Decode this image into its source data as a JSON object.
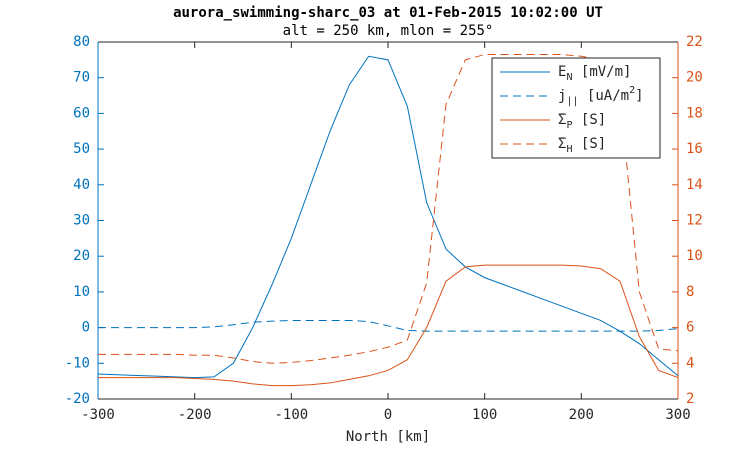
{
  "chart_data": {
    "type": "line",
    "title": "aurora_swimming-sharc_03 at 01-Feb-2015 10:02:00 UT",
    "subtitle": "alt = 250 km, mlon = 255°",
    "x_label": "North [km]",
    "x": [
      -300,
      -280,
      -260,
      -240,
      -220,
      -200,
      -180,
      -160,
      -140,
      -120,
      -100,
      -80,
      -60,
      -40,
      -20,
      0,
      20,
      40,
      60,
      80,
      100,
      120,
      140,
      160,
      180,
      200,
      220,
      240,
      260,
      280,
      300
    ],
    "series": [
      {
        "name": "E_N [mV/m]",
        "color": "#0072BD",
        "linestyle": "solid",
        "axis": "y",
        "values": [
          -13,
          -13.2,
          -13.4,
          -13.6,
          -13.8,
          -14,
          -13.8,
          -10,
          0,
          12,
          25,
          40,
          55,
          68,
          76,
          75,
          62,
          35,
          22,
          17,
          14,
          12,
          10,
          8,
          6,
          4,
          2,
          -1,
          -4.5,
          -9,
          -13.5
        ]
      },
      {
        "name": "j_{||} [uA/m^2]",
        "color": "#0072BD",
        "linestyle": "dashed",
        "axis": "y",
        "values": [
          0,
          0,
          0,
          0,
          0,
          0,
          0.2,
          0.8,
          1.5,
          1.8,
          2,
          2,
          2,
          2,
          1.7,
          0.5,
          -0.8,
          -1,
          -1,
          -1,
          -1,
          -1,
          -1,
          -1,
          -1,
          -1,
          -1,
          -1,
          -1,
          -0.8,
          -0.3
        ]
      },
      {
        "name": "Σ_P [S]",
        "color": "#D95319",
        "linestyle": "solid",
        "axis": "y2",
        "values": [
          3.2,
          3.2,
          3.2,
          3.2,
          3.2,
          3.15,
          3.1,
          3.0,
          2.85,
          2.75,
          2.75,
          2.8,
          2.9,
          3.1,
          3.3,
          3.6,
          4.2,
          6.0,
          8.6,
          9.4,
          9.5,
          9.5,
          9.5,
          9.5,
          9.5,
          9.45,
          9.3,
          8.6,
          5.5,
          3.6,
          3.2
        ]
      },
      {
        "name": "Σ_H [S]",
        "color": "#D95319",
        "linestyle": "dashed",
        "axis": "y2",
        "values": [
          4.5,
          4.5,
          4.5,
          4.5,
          4.5,
          4.45,
          4.45,
          4.3,
          4.1,
          4.0,
          4.05,
          4.15,
          4.3,
          4.45,
          4.65,
          4.9,
          5.3,
          8.5,
          18.5,
          21.0,
          21.3,
          21.3,
          21.3,
          21.3,
          21.3,
          21.2,
          21.0,
          19.0,
          8.0,
          4.8,
          4.7
        ]
      }
    ],
    "xlim": [
      -300,
      300
    ],
    "xticks": [
      -300,
      -200,
      -100,
      0,
      100,
      200,
      300
    ],
    "ylim": [
      -20,
      80
    ],
    "yticks": [
      -20,
      -10,
      0,
      10,
      20,
      30,
      40,
      50,
      60,
      70,
      80
    ],
    "y2lim": [
      2,
      22
    ],
    "y2ticks": [
      2,
      4,
      6,
      8,
      10,
      12,
      14,
      16,
      18,
      20,
      22
    ],
    "legend": "northeast"
  }
}
